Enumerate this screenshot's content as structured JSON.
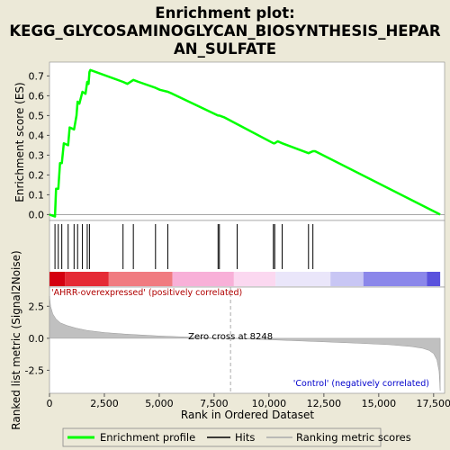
{
  "chart_data": [
    {
      "type": "line",
      "title_lines": [
        "Enrichment plot:",
        "KEGG_GLYCOSAMINOGLYCAN_BIOSYNTHESIS_HEPAR",
        "AN_SULFATE"
      ],
      "ylabel": "Enrichment score (ES)",
      "ylim": [
        -0.03,
        0.77
      ],
      "yticks": [
        "0.0",
        "0.1",
        "0.2",
        "0.3",
        "0.4",
        "0.5",
        "0.6",
        "0.7"
      ],
      "ytick_values": [
        0.0,
        0.1,
        0.2,
        0.3,
        0.4,
        0.5,
        0.6,
        0.7
      ],
      "series": [
        {
          "name": "Enrichment profile",
          "color": "#00ff00",
          "x": [
            0,
            250,
            300,
            400,
            480,
            560,
            650,
            850,
            920,
            1120,
            1230,
            1280,
            1360,
            1500,
            1640,
            1720,
            1780,
            1820,
            1860,
            3350,
            3550,
            3820,
            4060,
            4830,
            5030,
            5390,
            5600,
            7680,
            7740,
            7980,
            10200,
            10260,
            10400,
            10600,
            11800,
            12000,
            12100,
            17800
          ],
          "y": [
            0.0,
            -0.01,
            0.13,
            0.13,
            0.26,
            0.26,
            0.36,
            0.35,
            0.44,
            0.43,
            0.5,
            0.57,
            0.56,
            0.62,
            0.61,
            0.67,
            0.66,
            0.72,
            0.73,
            0.67,
            0.66,
            0.68,
            0.67,
            0.64,
            0.63,
            0.62,
            0.61,
            0.5,
            0.5,
            0.49,
            0.36,
            0.36,
            0.37,
            0.36,
            0.31,
            0.32,
            0.32,
            0.0
          ]
        }
      ]
    },
    {
      "type": "hits",
      "series_name": "Hits",
      "x": [
        250,
        400,
        560,
        850,
        1120,
        1280,
        1500,
        1720,
        1820,
        3350,
        3820,
        4830,
        5390,
        7680,
        7740,
        8550,
        10200,
        10260,
        10600,
        11800,
        12000
      ]
    },
    {
      "type": "area",
      "xlabel": "Rank in Ordered Dataset",
      "ylabel": "Ranked list metric (Signal2Noise)",
      "xlim": [
        0,
        18000
      ],
      "ylim": [
        -4.3,
        4.0
      ],
      "xticks": [
        "0",
        "2,500",
        "5,000",
        "7,500",
        "10,000",
        "12,500",
        "15,000",
        "17,500"
      ],
      "xtick_values": [
        0,
        2500,
        5000,
        7500,
        10000,
        12500,
        15000,
        17500
      ],
      "yticks": [
        "2.5",
        "0.0",
        "-2.5"
      ],
      "ytick_values": [
        2.5,
        0.0,
        -2.5
      ],
      "series": [
        {
          "name": "Ranking metric scores",
          "x": [
            0,
            50,
            150,
            300,
            500,
            800,
            1200,
            1700,
            2500,
            3500,
            5000,
            6500,
            8248,
            9500,
            11000,
            12500,
            14000,
            15500,
            16500,
            17000,
            17300,
            17500,
            17650,
            17750,
            17800
          ],
          "y": [
            3.3,
            2.5,
            1.9,
            1.5,
            1.2,
            1.0,
            0.8,
            0.62,
            0.45,
            0.32,
            0.18,
            0.08,
            0.0,
            -0.08,
            -0.18,
            -0.28,
            -0.38,
            -0.5,
            -0.65,
            -0.78,
            -0.95,
            -1.2,
            -1.7,
            -2.6,
            -4.1
          ]
        }
      ],
      "zero_cross_label": "Zero cross at 8248",
      "zero_cross_x": 8248,
      "pos_label": "'AHRR-overexpressed' (positively correlated)",
      "neg_label": "'Control' (negatively correlated)"
    }
  ],
  "legend": {
    "items": [
      {
        "label": "Enrichment profile",
        "color": "#00ff00"
      },
      {
        "label": "Hits",
        "color": "#000000"
      },
      {
        "label": "Ranking metric scores",
        "color": "#aaaaaa"
      }
    ]
  },
  "colors": {
    "background": "#ece9d8",
    "panel": "#ffffff",
    "profile": "#00ff00",
    "metric_fill": "#c0c0c0",
    "zero_cross_line": "#aaaaaa",
    "pos_label": "#b00000",
    "neg_label": "#0000cc"
  },
  "colorbar_stops": [
    "#d40010",
    "#e52a35",
    "#f07b80",
    "#f8b0d8",
    "#fbd8f0",
    "#eae6fa",
    "#c8c6f4",
    "#8b87ea",
    "#5a52dd",
    "#1c10c8"
  ],
  "colorbar_breaks": [
    0,
    700,
    2700,
    5600,
    8400,
    10300,
    12800,
    14300,
    17200,
    17800
  ]
}
